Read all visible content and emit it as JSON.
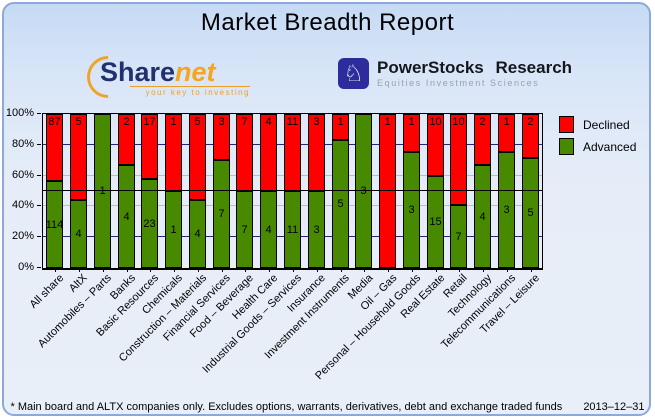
{
  "title": "Market Breadth Report",
  "logos": {
    "sharenet": {
      "name_part1": "Share",
      "name_part2": "net",
      "tagline": "your key to investing",
      "brand_navy": "#21316e",
      "brand_orange": "#f0a32a"
    },
    "powerstocks": {
      "name": "PowerStocks Research",
      "tagline": "Equities Investment Sciences",
      "icon": "chess-knight-icon",
      "brand_blue": "#2c2c9c"
    }
  },
  "chart_data": {
    "type": "bar",
    "stacked": true,
    "normalized": "percent_of_total",
    "title": "Market Breadth Report",
    "categories": [
      "All share",
      "AltX",
      "Automobiles – Parts",
      "Banks",
      "Basic Resources",
      "Chemicals",
      "Construction – Materials",
      "Financial Services",
      "Food – Beverage",
      "Health Care",
      "Industrial Goods – Services",
      "Insurance",
      "Investment Instruments",
      "Media",
      "Oil – Gas",
      "Personal – Household Goods",
      "Real Estate",
      "Retail",
      "Technology",
      "Telecommunications",
      "Travel – Leisure"
    ],
    "series": [
      {
        "name": "Declined",
        "color": "#fe0000",
        "values": [
          87,
          5,
          0,
          2,
          17,
          1,
          5,
          3,
          7,
          4,
          11,
          3,
          1,
          0,
          1,
          1,
          10,
          10,
          2,
          1,
          2
        ]
      },
      {
        "name": "Advanced",
        "color": "#478a00",
        "values": [
          114,
          4,
          1,
          4,
          23,
          1,
          4,
          7,
          7,
          4,
          11,
          3,
          5,
          3,
          0,
          3,
          15,
          7,
          4,
          3,
          5
        ]
      }
    ],
    "y_ticks": [
      "0%",
      "20%",
      "40%",
      "60%",
      "80%",
      "100%"
    ],
    "ylim": [
      0,
      100
    ],
    "legend_position": "top-right",
    "gridlines": {
      "navy_at": [
        20,
        80
      ],
      "gray_at": [
        40,
        60
      ],
      "black_at": [
        50
      ]
    },
    "colors": {
      "navy_grid": "#242482",
      "gray_grid": "#b9bcc0",
      "axis": "#000000"
    }
  },
  "footer": {
    "note": "* Main board and ALTX companies only. Excludes options, warrants, derivatives, debt and exchange traded funds",
    "date": "2013–12–31"
  }
}
